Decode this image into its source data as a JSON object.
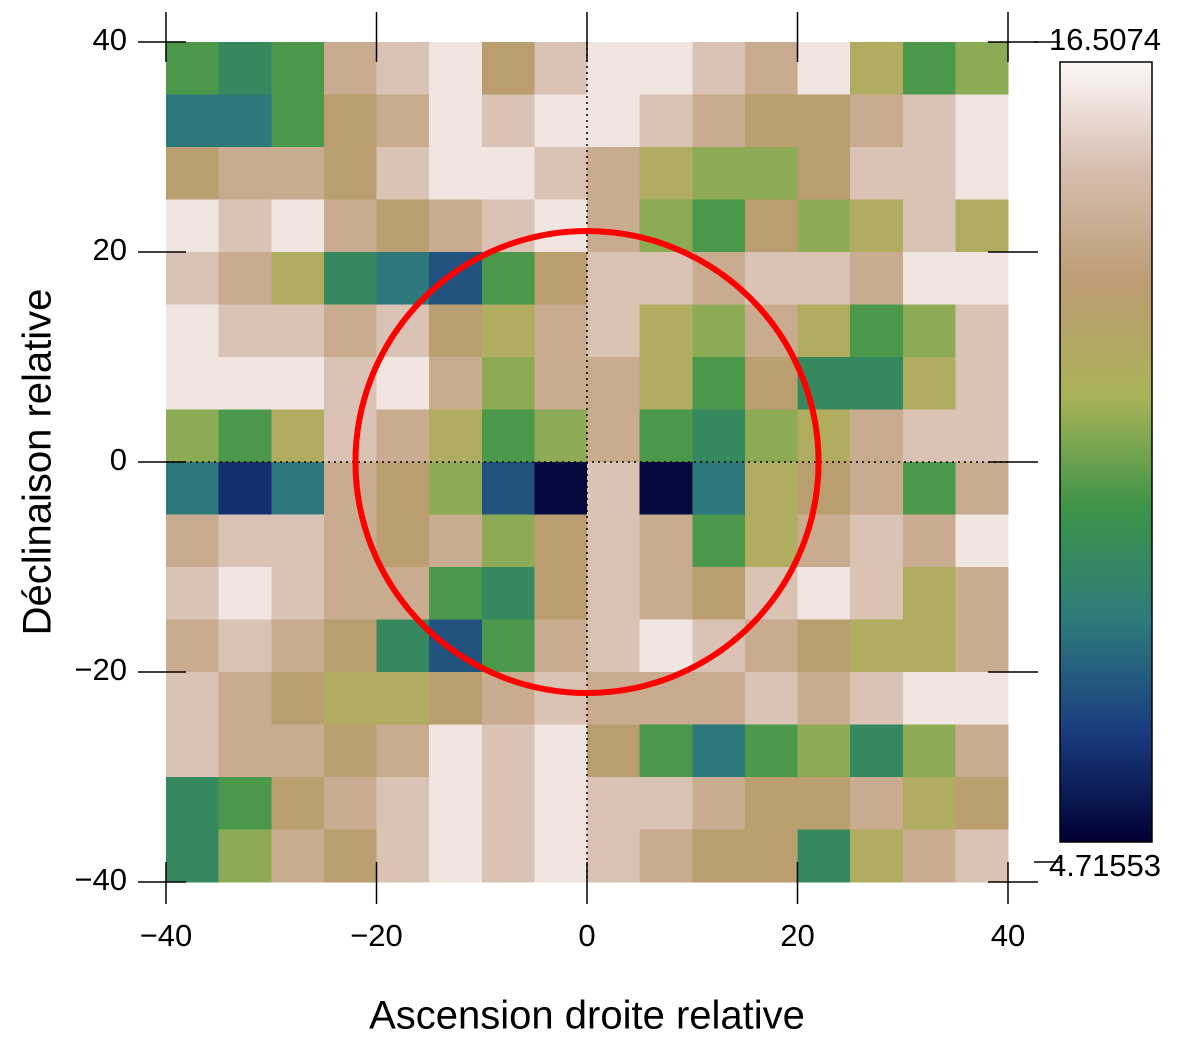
{
  "chart_data": {
    "type": "heatmap",
    "xlabel": "Ascension droite relative",
    "ylabel": "Déclinaison relative",
    "x": [
      -37.5,
      -32.5,
      -27.5,
      -22.5,
      -17.5,
      -12.5,
      -7.5,
      -2.5,
      2.5,
      7.5,
      12.5,
      17.5,
      22.5,
      27.5,
      32.5,
      37.5
    ],
    "y": [
      37.5,
      32.5,
      27.5,
      22.5,
      17.5,
      12.5,
      7.5,
      2.5,
      -2.5,
      -7.5,
      -12.5,
      -17.5,
      -22.5,
      -27.5,
      -32.5,
      -37.5
    ],
    "z": [
      [
        10,
        9,
        10,
        14,
        15,
        16,
        13,
        15,
        16,
        16,
        15,
        14,
        16,
        12,
        10,
        11
      ],
      [
        8,
        8,
        10,
        13,
        14,
        16,
        15,
        16,
        16,
        15,
        14,
        13,
        13,
        14,
        15,
        16
      ],
      [
        13,
        14,
        14,
        13,
        15,
        16,
        16,
        15,
        14,
        12,
        11,
        11,
        13,
        15,
        15,
        16
      ],
      [
        16,
        15,
        16,
        14,
        13,
        14,
        15,
        16,
        14,
        11,
        10,
        13,
        11,
        12,
        15,
        12
      ],
      [
        15,
        14,
        12,
        9,
        8,
        7,
        10,
        13,
        15,
        15,
        14,
        15,
        15,
        14,
        16,
        16
      ],
      [
        16,
        15,
        15,
        14,
        15,
        13,
        12,
        14,
        15,
        12,
        11,
        14,
        12,
        10,
        11,
        15
      ],
      [
        16,
        16,
        16,
        15,
        16,
        14,
        11,
        14,
        14,
        12,
        10,
        13,
        9,
        9,
        12,
        15
      ],
      [
        11,
        10,
        12,
        15,
        14,
        12,
        10,
        11,
        14,
        10,
        9,
        11,
        12,
        14,
        15,
        15
      ],
      [
        8,
        6,
        8,
        14,
        13,
        11,
        7,
        5,
        15,
        5,
        8,
        12,
        13,
        14,
        10,
        14
      ],
      [
        14,
        15,
        15,
        14,
        13,
        14,
        11,
        13,
        15,
        14,
        10,
        12,
        14,
        15,
        14,
        16
      ],
      [
        15,
        16,
        15,
        14,
        14,
        10,
        9,
        13,
        15,
        14,
        13,
        15,
        16,
        15,
        12,
        14
      ],
      [
        14,
        15,
        14,
        13,
        9,
        7,
        10,
        14,
        15,
        16,
        15,
        14,
        13,
        12,
        12,
        14
      ],
      [
        15,
        14,
        13,
        12,
        12,
        13,
        14,
        15,
        14,
        14,
        14,
        15,
        14,
        15,
        16,
        16
      ],
      [
        15,
        14,
        14,
        13,
        14,
        16,
        15,
        16,
        13,
        10,
        8,
        10,
        11,
        9,
        11,
        14
      ],
      [
        9,
        10,
        13,
        14,
        15,
        16,
        15,
        16,
        15,
        15,
        14,
        13,
        13,
        14,
        12,
        13
      ],
      [
        9,
        11,
        14,
        13,
        15,
        16,
        15,
        16,
        15,
        14,
        13,
        13,
        9,
        12,
        14,
        15
      ]
    ],
    "xlim": [
      -40,
      40
    ],
    "ylim": [
      -40,
      40
    ],
    "zlim": [
      4.71553,
      16.5074
    ],
    "xticks": [
      {
        "value": -40,
        "label": "−40"
      },
      {
        "value": -20,
        "label": "−20"
      },
      0,
      20,
      40
    ],
    "yticks": [
      {
        "value": -40,
        "label": "−40"
      },
      {
        "value": -20,
        "label": "−20"
      },
      0,
      20,
      40
    ],
    "zticks": [
      16.5074,
      4.71553
    ],
    "colorscale": [
      "#000033",
      "#1a3d80",
      "#2d7b7b",
      "#3d9448",
      "#aab358",
      "#bc9c72",
      "#d6bcad",
      "#fcf7f7"
    ],
    "circle": {
      "center": [
        0,
        0
      ],
      "radius": 22,
      "color": "#ff0000"
    }
  }
}
